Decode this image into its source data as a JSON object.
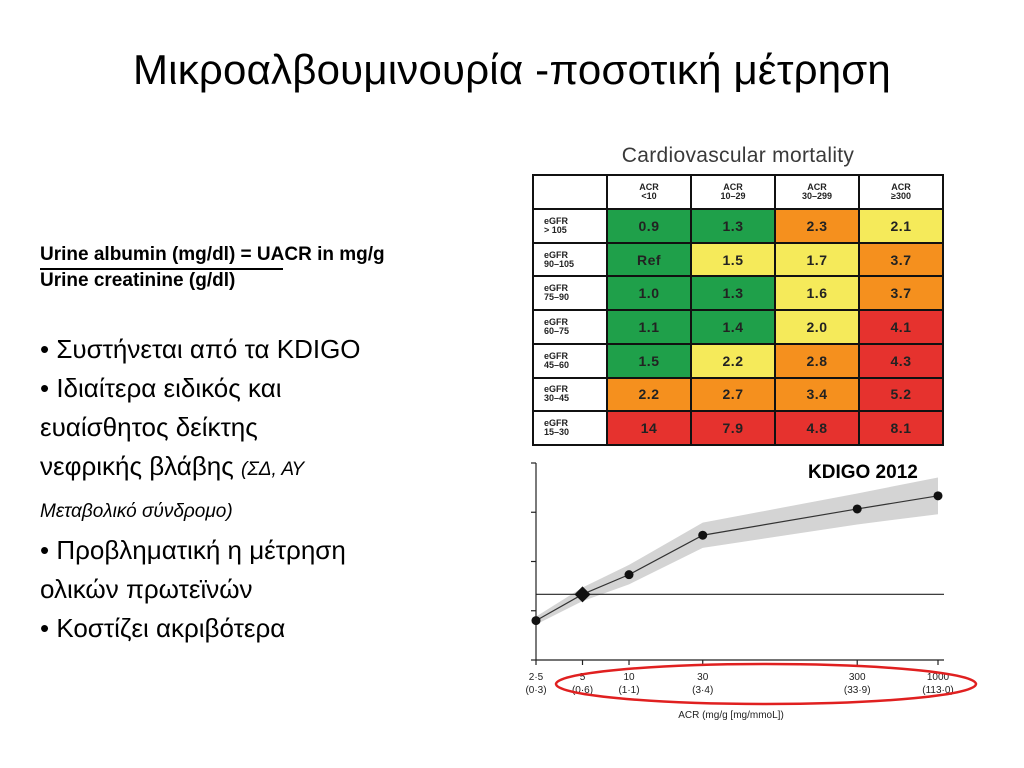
{
  "slide": {
    "title": "Μικροαλβουμινουρία -ποσοτική μέτρηση",
    "formula": {
      "numerator": "Urine albumin (mg/dl) = UACR in mg/g",
      "denominator": "Urine creatinine (g/dl)"
    },
    "bullets": [
      {
        "text": "• Συστήνεται από τα KDIGO"
      },
      {
        "text": "• Ιδιαίτερα ειδικός και"
      },
      {
        "text": "ευαίσθητος δείκτης"
      },
      {
        "text": "νεφρικής βλάβης ",
        "small": "(ΣΔ, ΑΥ"
      },
      {
        "text": "",
        "small": "Μεταβολικό σύνδρομο)"
      },
      {
        "text": "•  Προβληματική η μέτρηση"
      },
      {
        "text": "ολικών  πρωτεϊνών"
      },
      {
        "text": "• Κοστίζει ακριβότερα"
      }
    ],
    "source": "KDIGO 2012"
  },
  "table": {
    "title": "Cardiovascular mortality",
    "col_headers": [
      "ACR\n<10",
      "ACR\n10–29",
      "ACR\n30–299",
      "ACR\n≥300"
    ],
    "rows": [
      {
        "label": "eGFR\n> 105",
        "cells": [
          "0.9",
          "1.3",
          "2.3",
          "2.1"
        ],
        "colors": [
          "#1fa04a",
          "#1fa04a",
          "#f5901e",
          "#f5ea5a"
        ]
      },
      {
        "label": "eGFR\n90–105",
        "cells": [
          "Ref",
          "1.5",
          "1.7",
          "3.7"
        ],
        "colors": [
          "#1fa04a",
          "#f5ea5a",
          "#f5ea5a",
          "#f5901e"
        ]
      },
      {
        "label": "eGFR\n75–90",
        "cells": [
          "1.0",
          "1.3",
          "1.6",
          "3.7"
        ],
        "colors": [
          "#1fa04a",
          "#1fa04a",
          "#f5ea5a",
          "#f5901e"
        ]
      },
      {
        "label": "eGFR\n60–75",
        "cells": [
          "1.1",
          "1.4",
          "2.0",
          "4.1"
        ],
        "colors": [
          "#1fa04a",
          "#1fa04a",
          "#f5ea5a",
          "#e6322e"
        ]
      },
      {
        "label": "eGFR\n45–60",
        "cells": [
          "1.5",
          "2.2",
          "2.8",
          "4.3"
        ],
        "colors": [
          "#1fa04a",
          "#f5ea5a",
          "#f5901e",
          "#e6322e"
        ]
      },
      {
        "label": "eGFR\n30–45",
        "cells": [
          "2.2",
          "2.7",
          "3.4",
          "5.2"
        ],
        "colors": [
          "#f5901e",
          "#f5901e",
          "#f5901e",
          "#e6322e"
        ]
      },
      {
        "label": "eGFR\n15–30",
        "cells": [
          "14",
          "7.9",
          "4.8",
          "8.1"
        ],
        "colors": [
          "#e6322e",
          "#e6322e",
          "#e6322e",
          "#e6322e"
        ]
      }
    ]
  },
  "chart_data": {
    "type": "line",
    "xlabel": "ACR (mg/g [mg/mmoL])",
    "x_ticks": [
      {
        "value": 2.5,
        "label": "2·5",
        "sub": "(0·3)"
      },
      {
        "value": 5,
        "label": "5",
        "sub": "(0·6)"
      },
      {
        "value": 10,
        "label": "10",
        "sub": "(1·1)"
      },
      {
        "value": 30,
        "label": "30",
        "sub": "(3·4)"
      },
      {
        "value": 300,
        "label": "300",
        "sub": "(33·9)"
      },
      {
        "value": 1000,
        "label": "1000",
        "sub": "(113·0)"
      }
    ],
    "x_scale": "log",
    "x": [
      2.5,
      5,
      10,
      30,
      300,
      1000
    ],
    "y": [
      0.8,
      1.0,
      1.15,
      1.45,
      1.65,
      1.75
    ],
    "reference_index": 1,
    "ylim": [
      0.5,
      2.0
    ],
    "reference_line_y": 1.0,
    "highlight_color": "#e02020"
  }
}
